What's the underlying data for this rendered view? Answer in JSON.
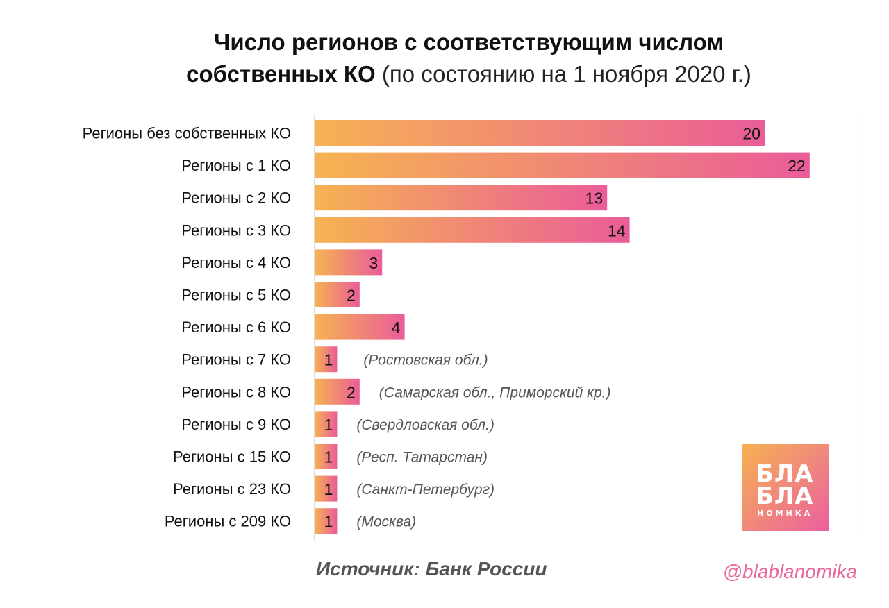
{
  "title": {
    "line1": "Число регионов с соответствующим числом",
    "line2_bold": "собственных КО",
    "line2_light": "(по состоянию на 1 ноября 2020 г.)"
  },
  "chart_data": {
    "type": "bar",
    "orientation": "horizontal",
    "categories": [
      "Регионы без собственных КО",
      "Регионы с 1 КО",
      "Регионы с 2 КО",
      "Регионы с 3 КО",
      "Регионы с 4 КО",
      "Регионы с 5 КО",
      "Регионы с 6 КО",
      "Регионы с 7 КО",
      "Регионы с 8 КО",
      "Регионы с 9 КО",
      "Регионы с 15 КО",
      "Регионы с 23 КО",
      "Регионы с 209 КО"
    ],
    "values": [
      20,
      22,
      13,
      14,
      3,
      2,
      4,
      1,
      2,
      1,
      1,
      1,
      1
    ],
    "annotations": [
      "",
      "",
      "",
      "",
      "",
      "",
      "",
      "(Ростовская обл.)",
      "(Самарская обл., Приморский кр.)",
      "(Свердловская обл.)",
      "(Респ. Татарстан)",
      "(Санкт-Петербург)",
      "(Москва)"
    ],
    "xlim": [
      0,
      24
    ],
    "grid": false,
    "colors": {
      "bar_start": "#f6b352",
      "bar_end": "#ea5c99",
      "label": "#111111",
      "annotation": "#555555"
    }
  },
  "source": "Источник: Банк России",
  "handle": "@blablanomika",
  "logo": {
    "line1": "БЛА",
    "line2": "БЛА",
    "line3": "НОМИКА"
  }
}
